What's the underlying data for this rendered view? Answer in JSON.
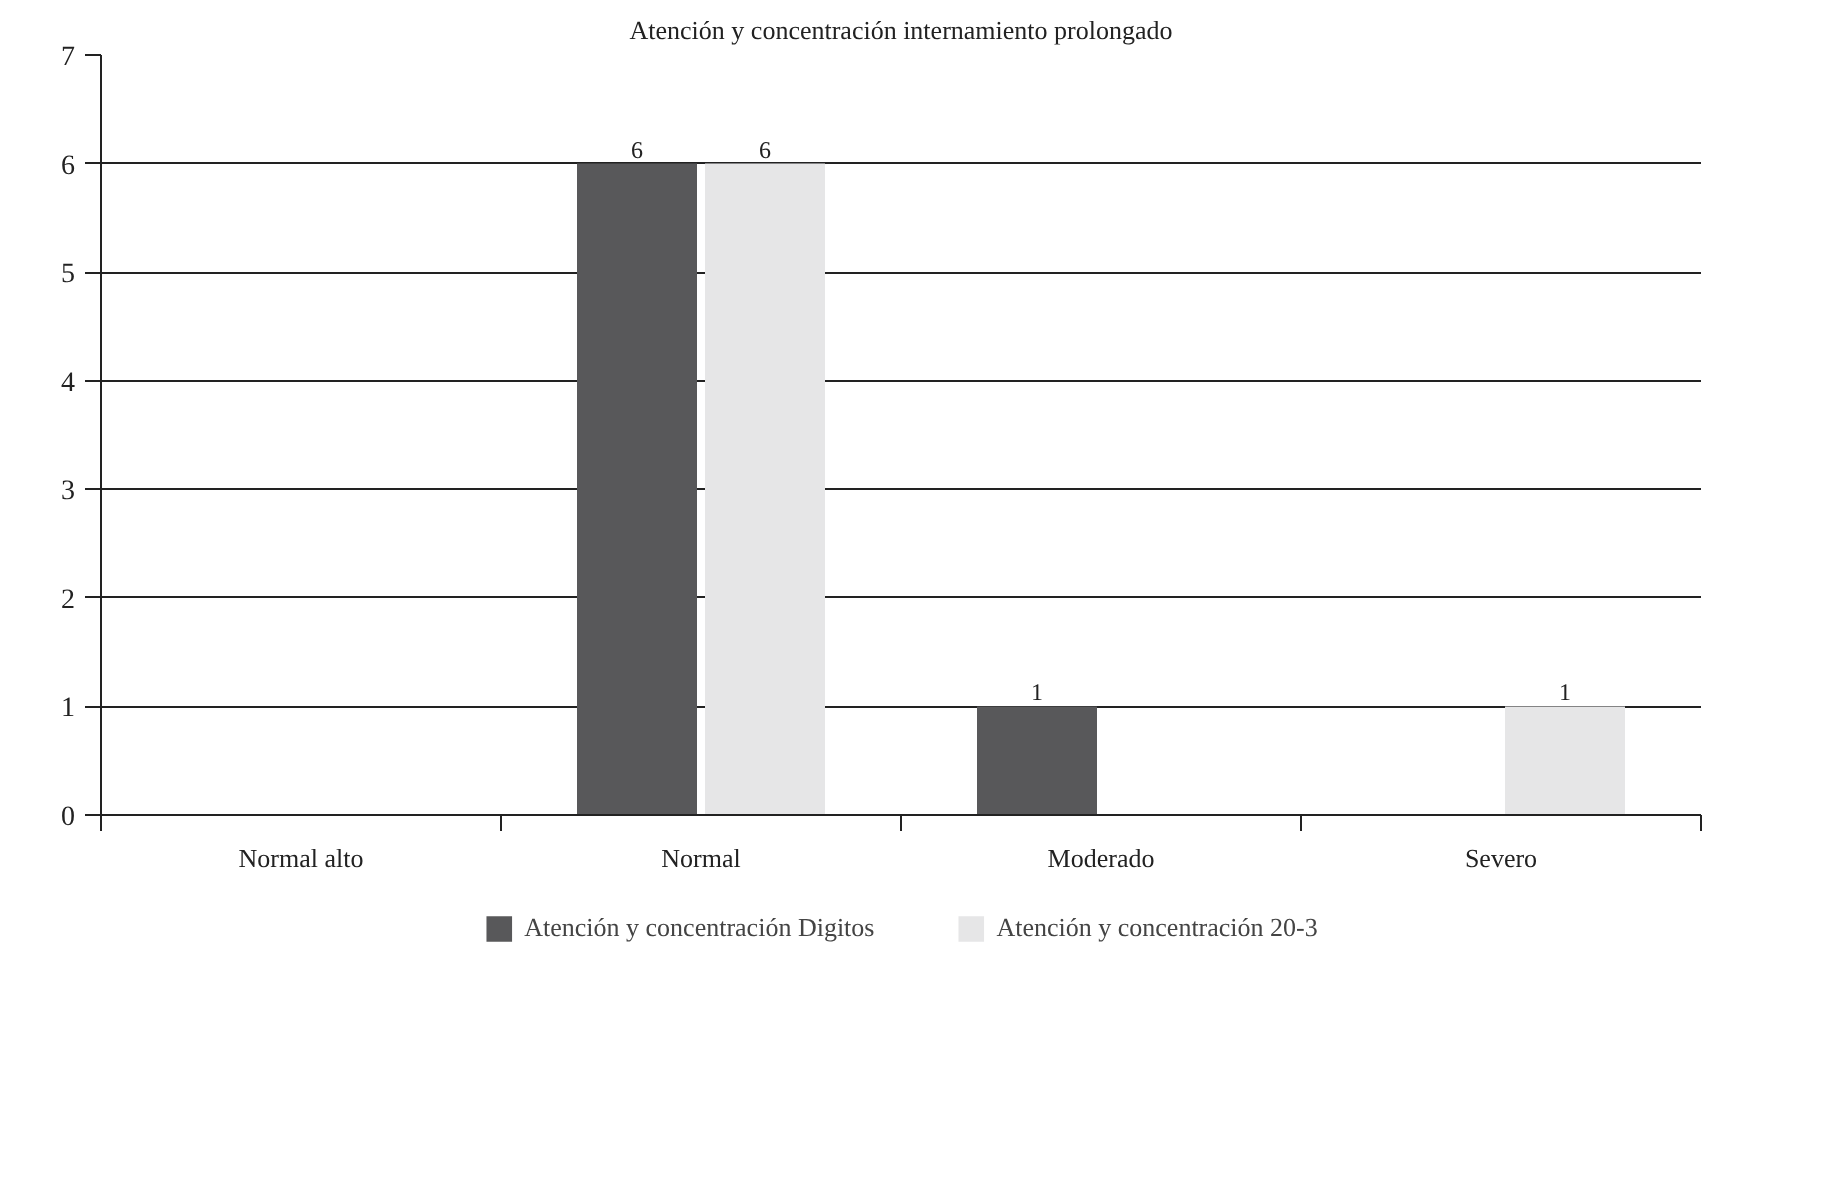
{
  "chart_data": {
    "type": "bar",
    "title": "Atención y concentración internamiento prolongado",
    "categories": [
      "Normal alto",
      "Normal",
      "Moderado",
      "Severo"
    ],
    "series": [
      {
        "name": "Atención y concentración Digitos",
        "color": "#58585a",
        "values": [
          0,
          6,
          1,
          0
        ],
        "value_labels": [
          null,
          "6",
          "1",
          null
        ]
      },
      {
        "name": "Atención y concentración 20-3",
        "color": "#e6e6e7",
        "values": [
          0,
          6,
          0,
          1
        ],
        "value_labels": [
          null,
          "6",
          null,
          "1"
        ]
      }
    ],
    "ylim": [
      0,
      7
    ],
    "yticks": [
      0,
      1,
      2,
      3,
      4,
      5,
      6,
      7
    ],
    "grid": "y",
    "legend": "bottom"
  }
}
